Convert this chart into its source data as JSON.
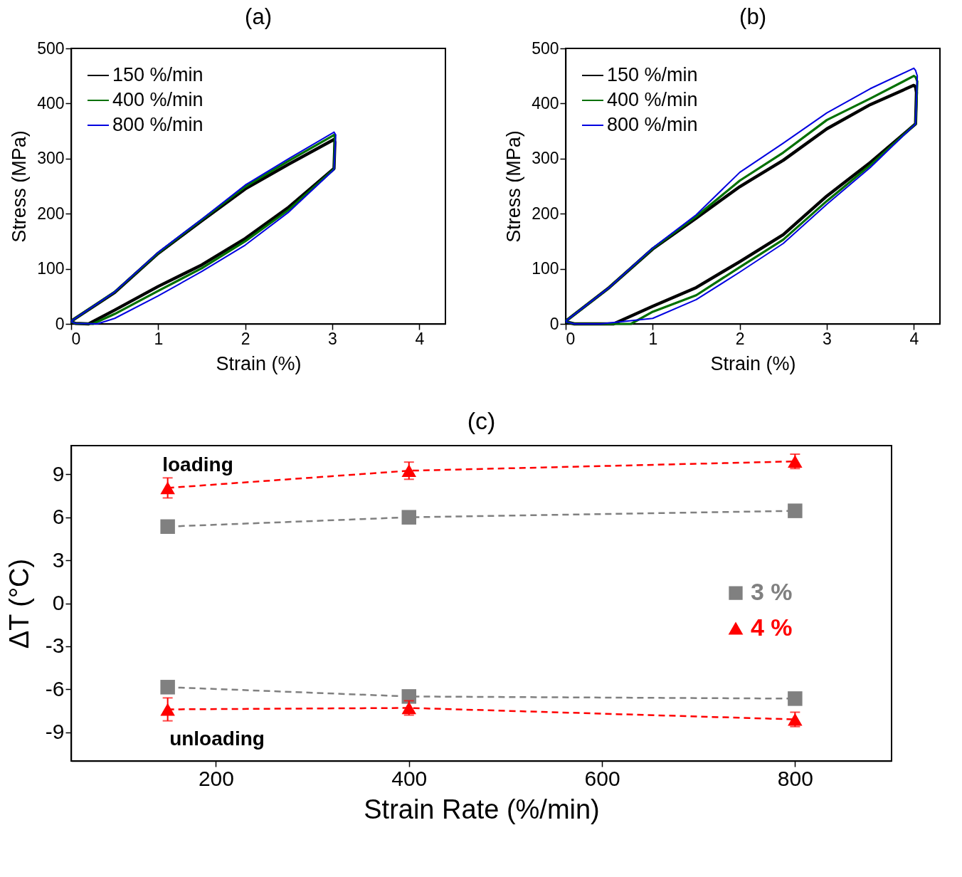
{
  "chart_data": [
    {
      "type": "line",
      "title": "(a)",
      "xlabel": "Strain (%)",
      "ylabel": "Stress (MPa)",
      "xlim": [
        0,
        4.3
      ],
      "ylim": [
        0,
        500
      ],
      "xticks": [
        0,
        1,
        2,
        3,
        4
      ],
      "yticks": [
        0,
        100,
        200,
        300,
        400,
        500
      ],
      "legend": "top left",
      "grid": false,
      "marker": "none",
      "line_style": "solid",
      "series": [
        {
          "name": "150 %/min",
          "color": "#000000",
          "x": [
            0,
            0.5,
            1,
            1.5,
            2,
            2.5,
            3,
            3.02,
            3.03,
            3.02,
            2.5,
            2,
            1.5,
            1,
            0.5,
            0.2,
            0.05,
            0
          ],
          "values": [
            5,
            57,
            128,
            187,
            245,
            290,
            333,
            335,
            330,
            282,
            212,
            155,
            107,
            68,
            25,
            0,
            1,
            4
          ]
        },
        {
          "name": "400 %/min",
          "color": "#007000",
          "x": [
            0,
            0.5,
            1,
            1.5,
            2,
            2.5,
            3,
            3.02,
            3.03,
            3.02,
            2.5,
            2,
            1.5,
            1,
            0.5,
            0.25,
            0.05,
            0
          ],
          "values": [
            5,
            58,
            129,
            189,
            249,
            296,
            341,
            343,
            338,
            281,
            207,
            150,
            101,
            60,
            18,
            0,
            1,
            4
          ]
        },
        {
          "name": "800 %/min",
          "color": "#0000e0",
          "x": [
            0,
            0.5,
            1,
            1.5,
            2,
            2.5,
            3,
            3.02,
            3.04,
            3.02,
            2.5,
            2,
            1.5,
            1,
            0.5,
            0.3,
            0.05,
            0
          ],
          "values": [
            5,
            58,
            130,
            190,
            252,
            300,
            346,
            348,
            343,
            280,
            203,
            143,
            95,
            51,
            10,
            0,
            1,
            4
          ]
        }
      ]
    },
    {
      "type": "line",
      "title": "(b)",
      "xlabel": "Strain (%)",
      "ylabel": "Stress (MPa)",
      "xlim": [
        0,
        4.3
      ],
      "ylim": [
        0,
        500
      ],
      "xticks": [
        0,
        1,
        2,
        3,
        4
      ],
      "yticks": [
        0,
        100,
        200,
        300,
        400,
        500
      ],
      "legend": "top left",
      "grid": false,
      "marker": "none",
      "line_style": "solid",
      "series": [
        {
          "name": "150 %/min",
          "color": "#000000",
          "x": [
            0,
            0.5,
            1,
            1.5,
            2,
            2.5,
            3,
            3.5,
            4,
            4.02,
            4.03,
            4.02,
            3.5,
            3,
            2.5,
            2,
            1.5,
            1,
            0.55,
            0.1,
            0
          ],
          "values": [
            5,
            66,
            136,
            192,
            249,
            297,
            354,
            398,
            433,
            430,
            420,
            363,
            293,
            232,
            162,
            113,
            66,
            32,
            0,
            0,
            4
          ]
        },
        {
          "name": "400 %/min",
          "color": "#007000",
          "x": [
            0,
            0.5,
            1,
            1.5,
            2,
            2.5,
            3,
            3.5,
            4,
            4.02,
            4.04,
            4.02,
            3.5,
            3,
            2.5,
            2,
            1.5,
            1,
            0.75,
            0.1,
            0
          ],
          "values": [
            5,
            66,
            137,
            195,
            260,
            311,
            370,
            409,
            450,
            448,
            440,
            363,
            288,
            223,
            153,
            103,
            52,
            22,
            0,
            0,
            4
          ]
        },
        {
          "name": "800 %/min",
          "color": "#0000e0",
          "x": [
            0,
            0.5,
            1,
            1.5,
            2,
            2.5,
            3,
            3.5,
            4,
            4.02,
            4.04,
            4.02,
            3.5,
            3,
            2.5,
            2,
            1.5,
            1,
            0.4,
            0.1,
            0
          ],
          "values": [
            5,
            66,
            138,
            198,
            275,
            328,
            383,
            427,
            464,
            460,
            450,
            363,
            284,
            217,
            146,
            94,
            44,
            10,
            0,
            0,
            4
          ]
        }
      ]
    },
    {
      "type": "line",
      "title": "(c)",
      "xlabel": "Strain Rate (%/min)",
      "ylabel": "ΔT (°C)",
      "xlim": [
        50,
        900
      ],
      "ylim": [
        -11,
        11
      ],
      "xticks": [
        200,
        400,
        600,
        800
      ],
      "yticks": [
        -9,
        -6,
        -3,
        0,
        3,
        6,
        9
      ],
      "legend": "right",
      "grid": false,
      "marker": "square",
      "line_style": "dashed",
      "annotations": [
        "loading",
        "unloading"
      ],
      "series": [
        {
          "name": "3 %",
          "color": "#808080",
          "x": [
            150,
            400,
            800
          ],
          "values": [
            5.35,
            6.0,
            6.45
          ]
        },
        {
          "name": "4 %",
          "color": "#ff0000",
          "marker": "triangle",
          "x": [
            150,
            400,
            800
          ],
          "values": [
            8.05,
            9.25,
            9.9
          ],
          "errors": [
            0.7,
            0.6,
            0.5
          ]
        },
        {
          "color": "#808080",
          "x": [
            150,
            400,
            800
          ],
          "values": [
            -5.85,
            -6.5,
            -6.65
          ]
        },
        {
          "color": "#ff0000",
          "marker": "triangle",
          "x": [
            150,
            400,
            800
          ],
          "values": [
            -7.4,
            -7.3,
            -8.1
          ],
          "errors": [
            0.8,
            0.5,
            0.5
          ]
        }
      ]
    }
  ]
}
